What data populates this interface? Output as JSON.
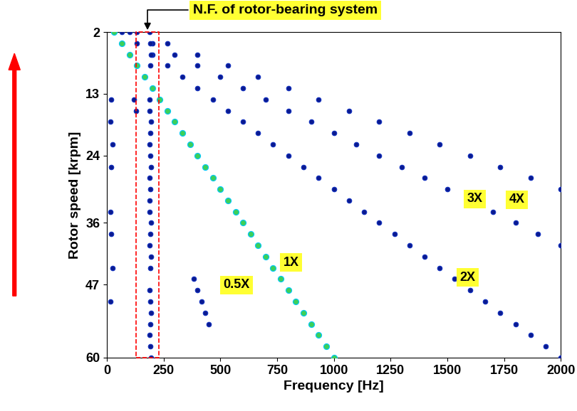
{
  "chart_data": {
    "type": "scatter",
    "x_label": "Frequency [Hz]",
    "y_label": "Rotor speed [krpm]",
    "xlim": [
      0,
      2000
    ],
    "xticks": [
      0,
      250,
      500,
      750,
      1000,
      1250,
      1500,
      1750,
      2000
    ],
    "ylim": [
      60,
      2
    ],
    "yticks": [
      2,
      13,
      24,
      36,
      47,
      60
    ],
    "marker": "o",
    "grid": false,
    "series": [
      {
        "name": "1X",
        "color": "#3ccf5a",
        "x": [
          33,
          67,
          100,
          133,
          167,
          200,
          233,
          267,
          300,
          333,
          367,
          400,
          433,
          467,
          500,
          533,
          567,
          600,
          633,
          667,
          700,
          733,
          767,
          800,
          833,
          867,
          900,
          933,
          967,
          1000
        ],
        "values": [
          2,
          4,
          6,
          8,
          10,
          12,
          14,
          16,
          18,
          20,
          22,
          24,
          26,
          28,
          30,
          32,
          34,
          36,
          38,
          40,
          42,
          44,
          46,
          48,
          50,
          52,
          54,
          56,
          58,
          60
        ]
      },
      {
        "name": "2X",
        "color": "#0b1a8f",
        "x": [
          67,
          133,
          200,
          267,
          333,
          400,
          467,
          533,
          600,
          667,
          733,
          800,
          867,
          933,
          1000,
          1067,
          1133,
          1200,
          1267,
          1333,
          1400,
          1467,
          1533,
          1600,
          1667,
          1733,
          1800,
          1867,
          1933,
          2000
        ],
        "values": [
          2,
          4,
          6,
          8,
          10,
          12,
          14,
          16,
          18,
          20,
          22,
          24,
          26,
          28,
          30,
          32,
          34,
          36,
          38,
          40,
          42,
          44,
          46,
          48,
          50,
          52,
          54,
          56,
          58,
          60
        ]
      },
      {
        "name": "3X",
        "color": "#0b1a8f",
        "x": [
          100,
          200,
          300,
          400,
          500,
          600,
          700,
          800,
          900,
          1000,
          1100,
          1200,
          1300,
          1400,
          1500,
          1600,
          1700,
          1800,
          1900,
          2000
        ],
        "values": [
          2,
          4,
          6,
          8,
          10,
          12,
          14,
          16,
          18,
          20,
          22,
          24,
          26,
          28,
          30,
          32,
          34,
          36,
          38,
          40
        ]
      },
      {
        "name": "4X",
        "color": "#0b1a8f",
        "x": [
          133,
          267,
          400,
          533,
          667,
          800,
          933,
          1067,
          1200,
          1333,
          1467,
          1600,
          1733,
          1867,
          2000
        ],
        "values": [
          2,
          4,
          6,
          8,
          10,
          12,
          14,
          16,
          18,
          20,
          22,
          24,
          26,
          28,
          30
        ]
      },
      {
        "name": "0.5X",
        "color": "#0b1a8f",
        "x": [
          383,
          400,
          417,
          433,
          450
        ],
        "values": [
          46,
          48,
          50,
          52,
          54
        ]
      },
      {
        "name": "N.F. of rotor-bearing system",
        "color": "#0b1a8f",
        "x": [
          190,
          192,
          195,
          193,
          188,
          190,
          195,
          192,
          190,
          193,
          196,
          190,
          192,
          188,
          190,
          194,
          192,
          190,
          195,
          192,
          190,
          192,
          195,
          193,
          190,
          192,
          195
        ],
        "values": [
          2,
          4,
          6,
          8,
          14,
          16,
          18,
          20,
          22,
          24,
          26,
          28,
          30,
          32,
          34,
          36,
          38,
          40,
          42,
          44,
          48,
          50,
          52,
          54,
          56,
          58,
          60
        ]
      },
      {
        "color": "#0b1a8f",
        "x": [
          20,
          15,
          25,
          20,
          15,
          20,
          25,
          15,
          120,
          130
        ],
        "values": [
          14,
          18,
          22,
          26,
          34,
          38,
          44,
          50,
          14,
          16
        ]
      }
    ]
  }
}
